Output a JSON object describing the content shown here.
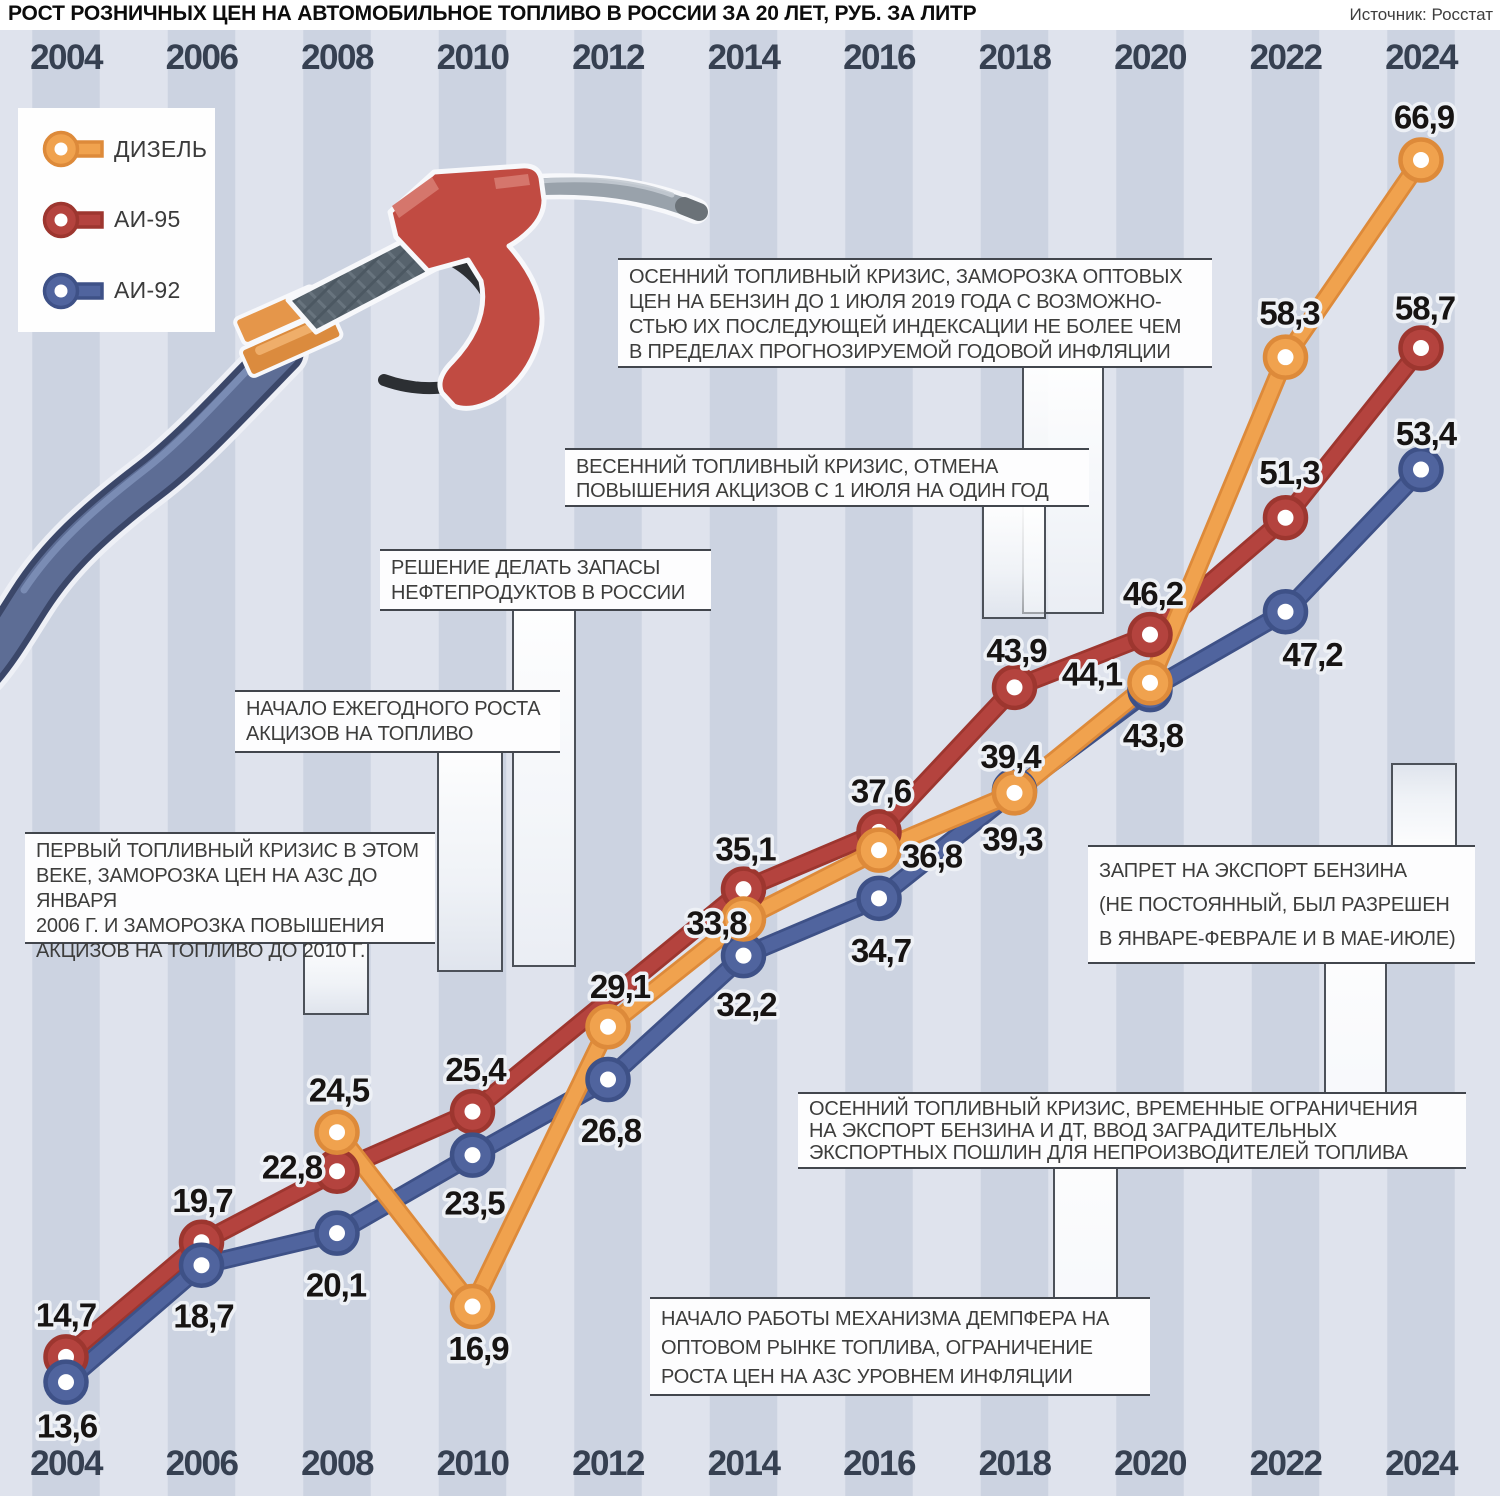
{
  "header": {
    "title": "РОСТ РОЗНИЧНЫХ ЦЕН НА АВТОМОБИЛЬНОЕ ТОПЛИВО В РОССИИ ЗА 20 ЛЕТ, РУБ. ЗА ЛИТР",
    "source": "Источник: Росстат"
  },
  "colors": {
    "stripe_dark": "#ccd3e1",
    "stripe_light": "#dfe3ed",
    "value_label_fill": "#171413",
    "value_label_outline": "#eef1f6",
    "year_label": "#364051"
  },
  "chart_data": {
    "type": "line",
    "title": "РОСТ РОЗНИЧНЫХ ЦЕН НА АВТОМОБИЛЬНОЕ ТОПЛИВО В РОССИИ ЗА 20 ЛЕТ, РУБ. ЗА ЛИТР",
    "source": "Источник: Росстат",
    "unit": "руб. за литр",
    "x": [
      2004,
      2006,
      2008,
      2010,
      2012,
      2014,
      2016,
      2018,
      2020,
      2022,
      2024
    ],
    "legend_position": "top-left",
    "grid": "vertical year stripes, no y-axis",
    "ylim": [
      11,
      70
    ],
    "series": [
      {
        "name": "ДИЗЕЛЬ",
        "color": "#f0a24e",
        "edge_color": "#dd8a3a",
        "values": [
          null,
          null,
          24.5,
          16.9,
          29.1,
          33.8,
          36.8,
          39.3,
          44.1,
          58.3,
          66.9
        ]
      },
      {
        "name": "АИ-95",
        "color": "#b4433e",
        "edge_color": "#9d362f",
        "values": [
          14.7,
          19.7,
          22.8,
          25.4,
          null,
          35.1,
          37.6,
          43.9,
          46.2,
          51.3,
          58.7
        ]
      },
      {
        "name": "АИ-92",
        "color": "#50649e",
        "edge_color": "#3e5187",
        "values": [
          13.6,
          18.7,
          20.1,
          23.5,
          26.8,
          32.2,
          34.7,
          39.4,
          43.8,
          47.2,
          53.4
        ]
      }
    ]
  },
  "annotations": [
    {
      "id": "autumn-2018-crisis",
      "text": "ОСЕННИЙ ТОПЛИВНЫЙ КРИЗИС, ЗАМОРОЗКА ОПТОВЫХ\nЦЕН НА БЕНЗИН ДО 1 ИЮЛЯ 2019 ГОДА С ВОЗМОЖНО-\nСТЬЮ ИХ ПОСЛЕДУЮЩЕЙ ИНДЕКСАЦИИ НЕ БОЛЕЕ ЧЕМ\nВ ПРЕДЕЛАХ ПРОГНОЗИРУЕМОЙ ГОДОВОЙ ИНФЛЯЦИИ"
    },
    {
      "id": "spring-crisis",
      "text": "ВЕСЕННИЙ ТОПЛИВНЫЙ КРИЗИС, ОТМЕНА\nПОВЫШЕНИЯ АКЦИЗОВ С 1 ИЮЛЯ НА ОДИН ГОД"
    },
    {
      "id": "oil-reserves-decision",
      "text": "РЕШЕНИЕ ДЕЛАТЬ ЗАПАСЫ\nНЕФТЕПРОДУКТОВ В РОССИИ"
    },
    {
      "id": "excise-growth-start",
      "text": "НАЧАЛО ЕЖЕГОДНОГО РОСТА\nАКЦИЗОВ НА ТОПЛИВО"
    },
    {
      "id": "first-crisis",
      "text": "ПЕРВЫЙ ТОПЛИВНЫЙ КРИЗИС В ЭТОМ\nВЕКЕ, ЗАМОРОЗКА ЦЕН НА АЗС ДО ЯНВАРЯ\n2006 Г. И ЗАМОРОЗКА ПОВЫШЕНИЯ\nАКЦИЗОВ НА ТОПЛИВО ДО 2010 Г."
    },
    {
      "id": "petrol-export-ban",
      "text": "ЗАПРЕТ НА ЭКСПОРТ БЕНЗИНА\n(НЕ ПОСТОЯННЫЙ, БЫЛ РАЗРЕШЕН\nВ ЯНВАРЕ-ФЕВРАЛЕ И В МАЕ-ИЮЛЕ)"
    },
    {
      "id": "autumn-2023-crisis",
      "text": "ОСЕННИЙ ТОПЛИВНЫЙ КРИЗИС, ВРЕМЕННЫЕ ОГРАНИЧЕНИЯ\nНА ЭКСПОРТ БЕНЗИНА И ДТ, ВВОД ЗАГРАДИТЕЛЬНЫХ\nЭКСПОРТНЫХ ПОШЛИН ДЛЯ НЕПРОИЗВОДИТЕЛЕЙ ТОПЛИВА"
    },
    {
      "id": "damper-mechanism",
      "text": "НАЧАЛО РАБОТЫ МЕХАНИЗМА ДЕМПФЕРА НА\nОПТОВОМ РЫНКЕ ТОПЛИВА, ОГРАНИЧЕНИЕ\nРОСТА ЦЕН НА АЗС УРОВНЕМ ИНФЛЯЦИИ"
    }
  ]
}
